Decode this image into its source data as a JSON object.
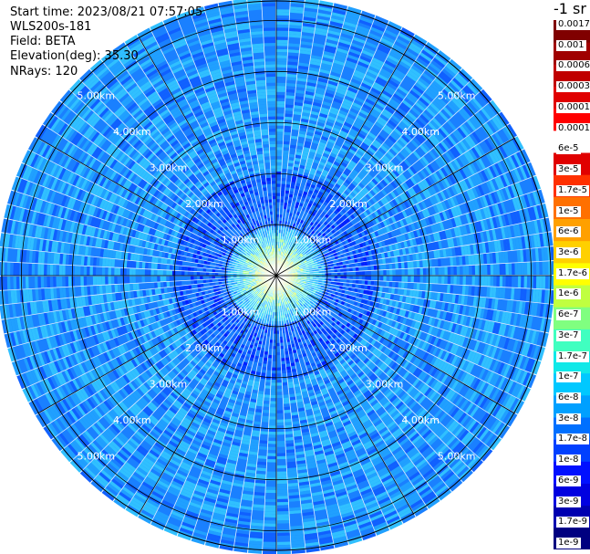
{
  "header": {
    "start_time": "Start time: 2023/08/21 07:57:05",
    "instrument": "WLS200s-181",
    "field": "Field: BETA",
    "elevation": "Elevation(deg): 35.30",
    "nrays": "NRays: 120"
  },
  "colorbar": {
    "title": "-1 sr",
    "labels": [
      "0.0017",
      "0.001",
      "0.0006",
      "0.0003",
      "0.00017",
      "0.0001",
      "6e-5",
      "3e-5",
      "1.7e-5",
      "1e-5",
      "6e-6",
      "3e-6",
      "1.7e-6",
      "1e-6",
      "6e-7",
      "3e-7",
      "1.7e-7",
      "1e-7",
      "6e-8",
      "3e-8",
      "1.7e-8",
      "1e-8",
      "6e-9",
      "3e-9",
      "1.7e-9",
      "1e-9"
    ],
    "colors": [
      "#000080",
      "#0000b0",
      "#0000e0",
      "#0010ff",
      "#0040ff",
      "#0070ff",
      "#00a0ff",
      "#00c8ff",
      "#10e8e8",
      "#40ffc0",
      "#80ff80",
      "#c0ff40",
      "#ffff00",
      "#ffd000",
      "#ffa000",
      "#ff7000",
      "#ff3000",
      "#e00000",
      "#ffffff",
      "#ff0000",
      "#e00000",
      "#c00000",
      "#a00000",
      "#800000"
    ]
  },
  "chart_data": {
    "type": "heatmap",
    "projection": "polar-ppi",
    "field": "BETA",
    "elevation_deg": 35.3,
    "nrays": 120,
    "range_rings_km": [
      1.0,
      2.0,
      3.0,
      4.0,
      5.0
    ],
    "range_ring_labels": [
      "1.00km",
      "2.00km",
      "3.00km",
      "4.00km",
      "5.00km"
    ],
    "azimuth_spokes_deg": [
      0,
      30,
      60,
      90,
      120,
      150,
      180,
      210,
      240,
      270,
      300,
      330
    ],
    "value_scale": "log",
    "value_range": [
      1e-09,
      0.0017
    ],
    "background_level": "1e-8 to 6e-8",
    "near_center_level": "1.7e-6 to 1e-5"
  }
}
